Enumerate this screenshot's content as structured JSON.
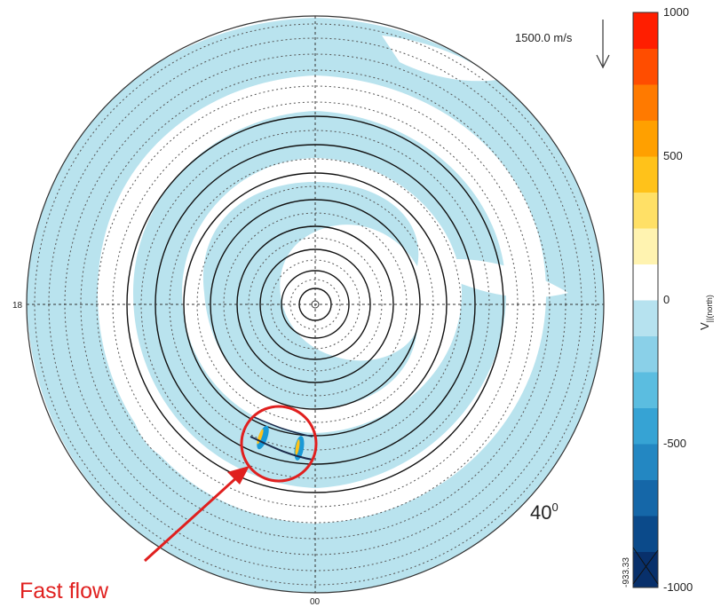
{
  "chart_data": {
    "type": "polar-map",
    "title": "",
    "cbar_label": "V",
    "cbar_label_sub": "||(north)",
    "cbar_ticks": [
      1000,
      500,
      0,
      -500,
      -1000
    ],
    "cbar_min_label": "-933.33",
    "cbar_range": [
      -1000,
      1000
    ],
    "vector_scale": "1500.0 m/s",
    "mlt_labels": {
      "left": "18",
      "bottom": "00"
    },
    "latitude_label": "40",
    "latitude_label_sup": "0",
    "annotation": "Fast flow",
    "colors": {
      "background_flow": "#b9e3ee",
      "annotation": "#e0201f",
      "colorbar": [
        "#08306b",
        "#0b4a8a",
        "#1567a8",
        "#2387c2",
        "#36a3d4",
        "#5bbde0",
        "#8ad0e8",
        "#b6e2ef",
        "#ffffff",
        "#fff3b0",
        "#ffe066",
        "#ffc21a",
        "#ffa000",
        "#ff7a00",
        "#ff4d00",
        "#ff1e00"
      ]
    }
  }
}
